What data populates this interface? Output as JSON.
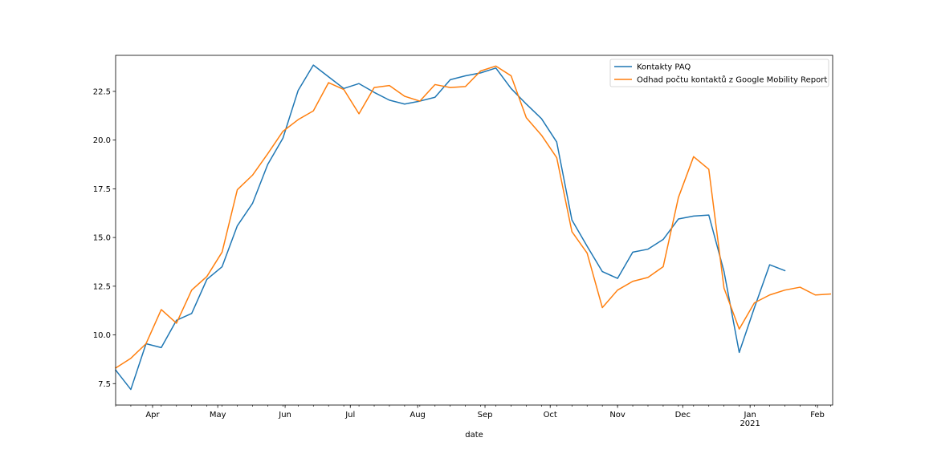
{
  "chart_data": {
    "type": "line",
    "xlabel": "date",
    "ylabel": "",
    "ylim": [
      6.4,
      24.35
    ],
    "xlim": [
      "2020-03-15",
      "2021-02-08"
    ],
    "grid": false,
    "legend_position": "top-right",
    "y_ticks": [
      7.5,
      10.0,
      12.5,
      15.0,
      17.5,
      20.0,
      22.5
    ],
    "y_tick_labels": [
      "7.5",
      "10.0",
      "12.5",
      "15.0",
      "17.5",
      "20.0",
      "22.5"
    ],
    "x_ticks_major": [
      {
        "date": "2020-04-01",
        "label": "Apr",
        "sublabel": ""
      },
      {
        "date": "2020-05-01",
        "label": "May",
        "sublabel": ""
      },
      {
        "date": "2020-06-01",
        "label": "Jun",
        "sublabel": ""
      },
      {
        "date": "2020-07-01",
        "label": "Jul",
        "sublabel": ""
      },
      {
        "date": "2020-08-01",
        "label": "Aug",
        "sublabel": ""
      },
      {
        "date": "2020-09-01",
        "label": "Sep",
        "sublabel": ""
      },
      {
        "date": "2020-10-01",
        "label": "Oct",
        "sublabel": ""
      },
      {
        "date": "2020-11-01",
        "label": "Nov",
        "sublabel": ""
      },
      {
        "date": "2020-12-01",
        "label": "Dec",
        "sublabel": ""
      },
      {
        "date": "2021-01-01",
        "label": "Jan",
        "sublabel": "2021"
      },
      {
        "date": "2021-02-01",
        "label": "Feb",
        "sublabel": ""
      }
    ],
    "x": [
      "2020-03-15",
      "2020-03-22",
      "2020-03-29",
      "2020-04-05",
      "2020-04-12",
      "2020-04-19",
      "2020-04-26",
      "2020-05-03",
      "2020-05-10",
      "2020-05-17",
      "2020-05-24",
      "2020-05-31",
      "2020-06-07",
      "2020-06-14",
      "2020-06-21",
      "2020-06-28",
      "2020-07-05",
      "2020-07-12",
      "2020-07-19",
      "2020-07-26",
      "2020-08-02",
      "2020-08-09",
      "2020-08-16",
      "2020-08-23",
      "2020-08-30",
      "2020-09-06",
      "2020-09-13",
      "2020-09-20",
      "2020-09-27",
      "2020-10-04",
      "2020-10-11",
      "2020-10-18",
      "2020-10-25",
      "2020-11-01",
      "2020-11-08",
      "2020-11-15",
      "2020-11-22",
      "2020-11-29",
      "2020-12-06",
      "2020-12-13",
      "2020-12-20",
      "2020-12-27",
      "2021-01-03",
      "2021-01-10",
      "2021-01-17",
      "2021-01-24",
      "2021-01-31",
      "2021-02-07"
    ],
    "series": [
      {
        "name": "Kontakty PAQ",
        "color": "#1f77b4",
        "values": [
          8.2,
          7.2,
          9.55,
          9.35,
          10.75,
          11.1,
          12.85,
          13.5,
          15.6,
          16.75,
          18.75,
          20.1,
          22.55,
          23.85,
          23.25,
          22.65,
          22.9,
          22.45,
          22.05,
          21.85,
          22.0,
          22.2,
          23.1,
          23.3,
          23.45,
          23.7,
          22.65,
          21.85,
          21.1,
          19.9,
          15.9,
          14.55,
          13.25,
          12.9,
          14.25,
          14.4,
          14.9,
          15.95,
          16.1,
          16.15,
          13.25,
          9.1,
          11.4,
          13.6,
          13.3,
          null,
          null,
          null
        ]
      },
      {
        "name": "Odhad počtu kontaktů z Google Mobility Report",
        "color": "#ff7f0e",
        "values": [
          8.3,
          8.8,
          9.55,
          11.3,
          10.6,
          12.3,
          13.0,
          14.25,
          17.45,
          18.2,
          19.3,
          20.45,
          21.05,
          21.5,
          22.95,
          22.6,
          21.35,
          22.7,
          22.8,
          22.25,
          22.0,
          22.85,
          22.7,
          22.75,
          23.55,
          23.8,
          23.3,
          21.15,
          20.25,
          19.1,
          15.3,
          14.2,
          11.4,
          12.3,
          12.75,
          12.95,
          13.5,
          17.05,
          19.15,
          18.5,
          12.4,
          10.3,
          11.65,
          12.05,
          12.3,
          12.45,
          12.05,
          12.1
        ]
      }
    ]
  }
}
